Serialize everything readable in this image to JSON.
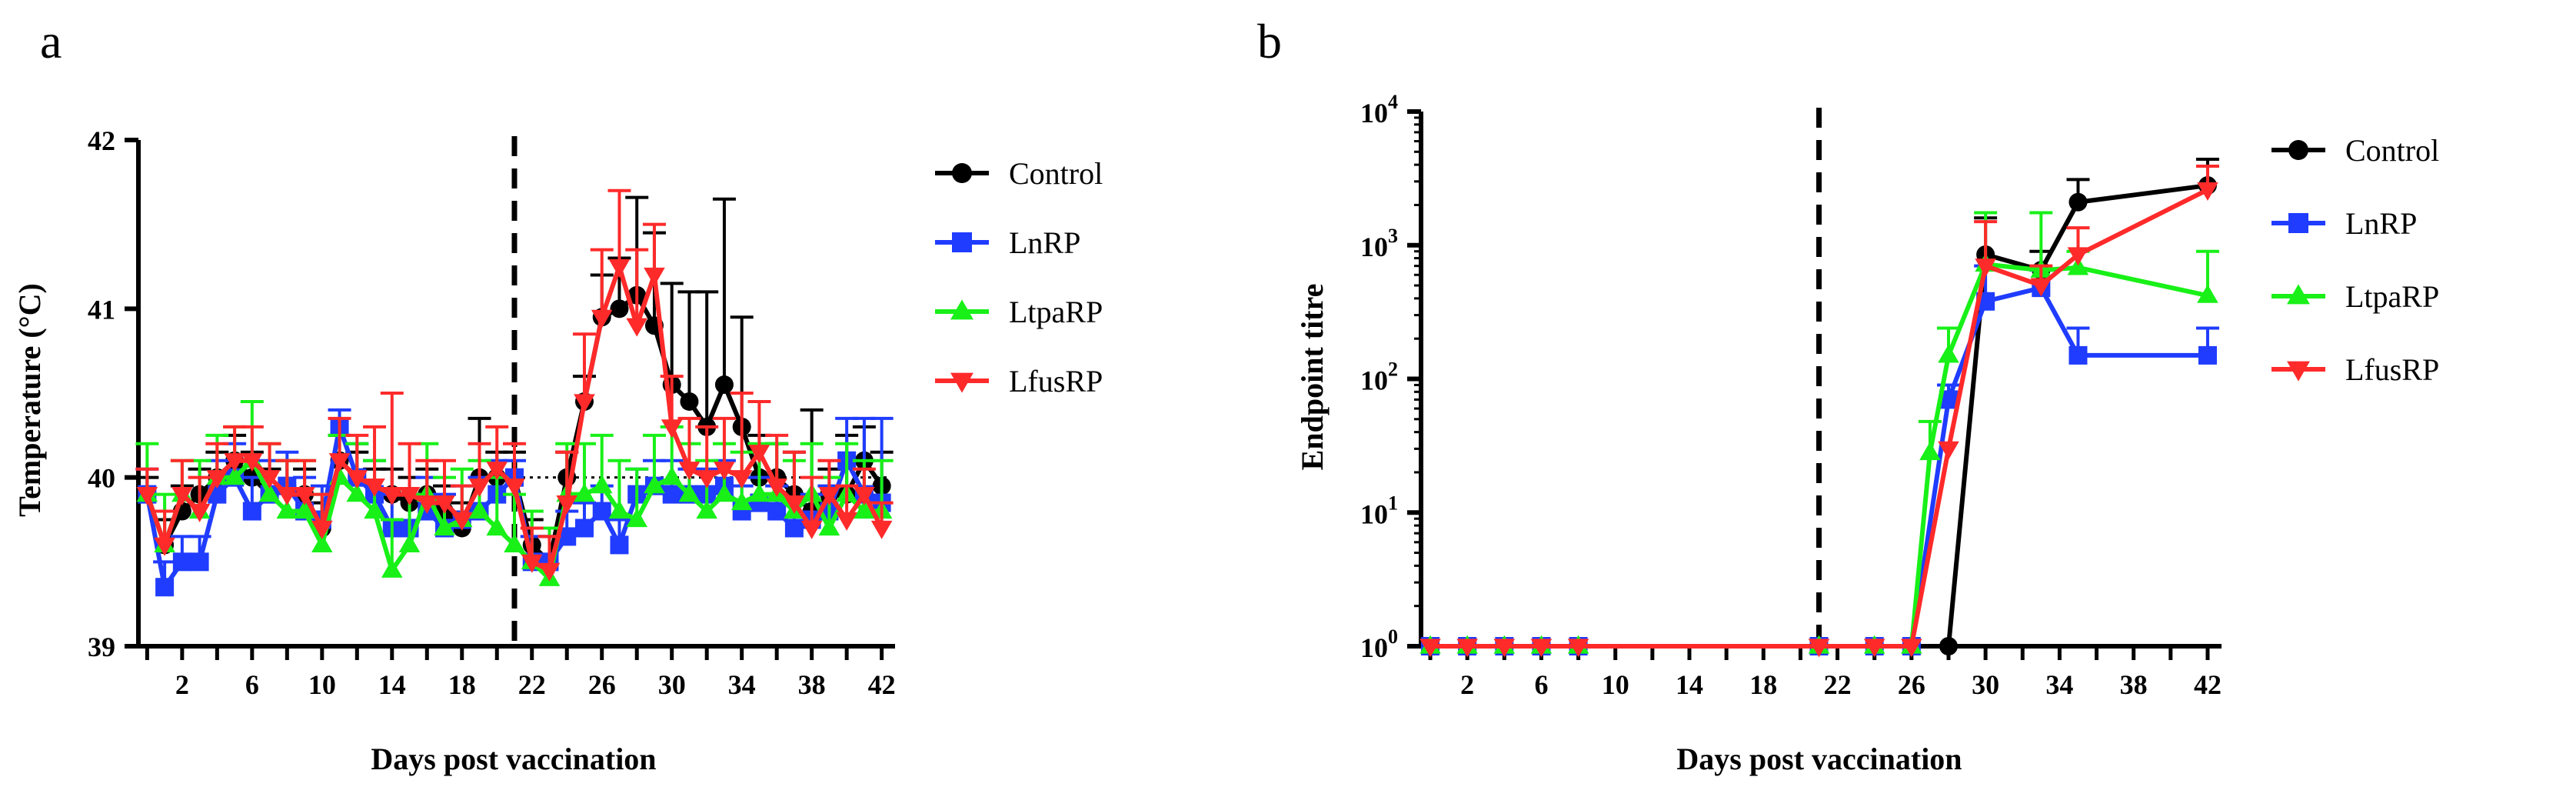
{
  "figure": {
    "panel_a_letter": "a",
    "panel_b_letter": "b"
  },
  "chart_data": [
    {
      "panel": "a",
      "type": "line",
      "title": "",
      "xlabel": "Days post vaccination",
      "ylabel": "Temperature (°C)",
      "xlim": [
        -0.5,
        42.5
      ],
      "ylim": [
        39,
        42
      ],
      "xticks": [
        2,
        6,
        10,
        14,
        18,
        22,
        26,
        30,
        34,
        38,
        42
      ],
      "yticks": [
        39,
        40,
        41,
        42
      ],
      "baseline": 40,
      "vline_x": 21,
      "legend": [
        "Control",
        "LnRP",
        "LtpaRP",
        "LfusRP"
      ],
      "legend_position": "right",
      "series": [
        {
          "name": "Control",
          "color": "#000000",
          "marker": "circle",
          "x": [
            0,
            1,
            2,
            3,
            4,
            5,
            6,
            7,
            8,
            9,
            10,
            11,
            12,
            13,
            14,
            15,
            16,
            17,
            18,
            19,
            20,
            21,
            22,
            23,
            24,
            25,
            26,
            27,
            28,
            29,
            30,
            31,
            32,
            33,
            34,
            35,
            36,
            37,
            38,
            39,
            40,
            41,
            42
          ],
          "y": [
            39.9,
            39.6,
            39.8,
            39.9,
            40.0,
            40.1,
            40.0,
            39.9,
            39.95,
            39.9,
            39.7,
            40.1,
            40.0,
            39.9,
            39.9,
            39.85,
            39.9,
            39.8,
            39.7,
            40.0,
            40.0,
            40.0,
            39.6,
            39.5,
            40.0,
            40.45,
            40.95,
            41.0,
            41.08,
            40.9,
            40.55,
            40.45,
            40.3,
            40.55,
            40.3,
            40.0,
            40.0,
            39.9,
            39.8,
            39.9,
            39.9,
            40.1,
            39.95
          ],
          "err": [
            0.1,
            0.15,
            0.15,
            0.15,
            0.15,
            0.15,
            0.15,
            0.15,
            0.15,
            0.15,
            0.15,
            0.15,
            0.15,
            0.15,
            0.15,
            0.15,
            0.15,
            0.15,
            0.15,
            0.35,
            0.15,
            0.15,
            0.15,
            0.15,
            0.15,
            0.15,
            0.25,
            0.3,
            0.58,
            0.55,
            0.6,
            0.65,
            0.8,
            1.1,
            0.65,
            0.25,
            0.2,
            0.25,
            0.6,
            0.15,
            0.35,
            0.2,
            0.2
          ]
        },
        {
          "name": "LnRP",
          "color": "#1f3cff",
          "marker": "square",
          "x": [
            0,
            1,
            2,
            3,
            4,
            5,
            6,
            7,
            8,
            9,
            10,
            11,
            12,
            13,
            14,
            15,
            16,
            17,
            18,
            19,
            20,
            21,
            22,
            23,
            24,
            25,
            26,
            27,
            28,
            29,
            30,
            31,
            32,
            33,
            34,
            35,
            36,
            37,
            38,
            39,
            40,
            41,
            42
          ],
          "y": [
            39.9,
            39.35,
            39.5,
            39.5,
            39.9,
            40.0,
            39.8,
            39.9,
            39.95,
            39.8,
            39.75,
            40.3,
            40.0,
            39.9,
            39.7,
            39.7,
            39.8,
            39.7,
            39.75,
            39.8,
            39.9,
            40.0,
            39.5,
            39.5,
            39.65,
            39.7,
            39.8,
            39.6,
            39.9,
            39.95,
            39.9,
            39.9,
            39.9,
            39.95,
            39.8,
            39.85,
            39.8,
            39.7,
            39.75,
            39.8,
            40.1,
            39.9,
            39.85
          ],
          "err": [
            0.15,
            0.15,
            0.15,
            0.15,
            0.2,
            0.2,
            0.2,
            0.2,
            0.2,
            0.2,
            0.2,
            0.1,
            0.2,
            0.2,
            0.2,
            0.2,
            0.2,
            0.2,
            0.2,
            0.2,
            0.2,
            0.1,
            0.15,
            0.15,
            0.15,
            0.15,
            0.15,
            0.15,
            0.15,
            0.15,
            0.2,
            0.15,
            0.15,
            0.15,
            0.15,
            0.15,
            0.15,
            0.15,
            0.15,
            0.15,
            0.25,
            0.45,
            0.5
          ]
        },
        {
          "name": "LtpaRP",
          "color": "#18f018",
          "marker": "triangle-up",
          "x": [
            0,
            1,
            2,
            3,
            4,
            5,
            6,
            7,
            8,
            9,
            10,
            11,
            12,
            13,
            14,
            15,
            16,
            17,
            18,
            19,
            20,
            21,
            22,
            23,
            24,
            25,
            26,
            27,
            28,
            29,
            30,
            31,
            32,
            33,
            34,
            35,
            36,
            37,
            38,
            39,
            40,
            41,
            42
          ],
          "y": [
            39.9,
            39.6,
            39.9,
            39.8,
            40.0,
            40.0,
            40.1,
            39.9,
            39.8,
            39.8,
            39.6,
            40.0,
            39.9,
            39.8,
            39.45,
            39.6,
            39.9,
            39.7,
            39.75,
            39.8,
            39.7,
            39.6,
            39.5,
            39.4,
            39.9,
            39.9,
            39.95,
            39.8,
            39.75,
            39.95,
            40.0,
            39.9,
            39.8,
            39.9,
            39.85,
            39.9,
            39.9,
            39.8,
            39.9,
            39.7,
            39.9,
            39.8,
            39.8
          ],
          "err": [
            0.3,
            0.3,
            0.2,
            0.3,
            0.25,
            0.3,
            0.35,
            0.3,
            0.3,
            0.3,
            0.3,
            0.25,
            0.3,
            0.3,
            0.3,
            0.3,
            0.3,
            0.3,
            0.3,
            0.3,
            0.3,
            0.3,
            0.3,
            0.3,
            0.3,
            0.3,
            0.3,
            0.3,
            0.3,
            0.3,
            0.3,
            0.3,
            0.3,
            0.3,
            0.3,
            0.3,
            0.3,
            0.3,
            0.3,
            0.3,
            0.3,
            0.3,
            0.3
          ]
        },
        {
          "name": "LfusRP",
          "color": "#ff2a2a",
          "marker": "triangle-down",
          "x": [
            0,
            1,
            2,
            3,
            4,
            5,
            6,
            7,
            8,
            9,
            10,
            11,
            12,
            13,
            14,
            15,
            16,
            17,
            18,
            19,
            20,
            21,
            22,
            23,
            24,
            25,
            26,
            27,
            28,
            29,
            30,
            31,
            32,
            33,
            34,
            35,
            36,
            37,
            38,
            39,
            40,
            41,
            42
          ],
          "y": [
            39.9,
            39.6,
            39.9,
            39.8,
            40.0,
            40.1,
            40.1,
            40.0,
            39.9,
            39.9,
            39.7,
            40.1,
            40.0,
            39.95,
            39.9,
            39.9,
            39.85,
            39.85,
            39.75,
            39.95,
            40.05,
            39.95,
            39.5,
            39.45,
            39.85,
            40.45,
            40.95,
            41.25,
            40.9,
            41.2,
            40.3,
            40.05,
            40.0,
            40.05,
            40.0,
            40.15,
            39.95,
            39.85,
            39.7,
            39.9,
            39.75,
            39.9,
            39.7
          ],
          "err": [
            0.15,
            0.2,
            0.2,
            0.2,
            0.2,
            0.2,
            0.2,
            0.2,
            0.2,
            0.2,
            0.2,
            0.25,
            0.25,
            0.35,
            0.6,
            0.3,
            0.25,
            0.25,
            0.2,
            0.25,
            0.25,
            0.25,
            0.2,
            0.2,
            0.3,
            0.4,
            0.4,
            0.45,
            0.45,
            0.3,
            0.3,
            0.3,
            0.3,
            0.3,
            0.5,
            0.3,
            0.3,
            0.3,
            0.3,
            0.2,
            0.2,
            0.15,
            0.15
          ]
        }
      ]
    },
    {
      "panel": "b",
      "type": "line",
      "title": "",
      "xlabel": "Days post vaccination",
      "ylabel": "Endpoint titre",
      "yscale": "log",
      "xlim": [
        -0.5,
        42.5
      ],
      "ylim": [
        1,
        10000
      ],
      "xticks": [
        2,
        6,
        10,
        14,
        18,
        22,
        26,
        30,
        34,
        38,
        42
      ],
      "ytick_exponents": [
        0,
        1,
        2,
        3,
        4
      ],
      "ytick_base": "10",
      "vline_x": 21,
      "legend": [
        "Control",
        "LnRP",
        "LtpaRP",
        "LfusRP"
      ],
      "legend_position": "right",
      "series": [
        {
          "name": "Control",
          "color": "#000000",
          "marker": "circle",
          "x": [
            0,
            2,
            4,
            6,
            8,
            21,
            24,
            26,
            28,
            30,
            33,
            35,
            42
          ],
          "y": [
            1,
            1,
            1,
            1,
            1,
            1,
            1,
            1,
            1,
            850,
            650,
            2100,
            2800
          ],
          "err_hi": [
            1,
            1,
            1,
            1,
            1,
            1,
            1,
            1,
            1,
            1600,
            900,
            3100,
            4400
          ]
        },
        {
          "name": "LnRP",
          "color": "#1f3cff",
          "marker": "square",
          "x": [
            0,
            2,
            4,
            6,
            8,
            21,
            24,
            26,
            28,
            30,
            33,
            35,
            42
          ],
          "y": [
            1,
            1,
            1,
            1,
            1,
            1,
            1,
            1,
            70,
            380,
            480,
            150,
            150
          ],
          "err_hi": [
            1,
            1,
            1,
            1,
            1,
            1,
            1,
            1,
            90,
            700,
            650,
            240,
            240
          ]
        },
        {
          "name": "LtpaRP",
          "color": "#18f018",
          "marker": "triangle-up",
          "x": [
            0,
            2,
            4,
            6,
            8,
            21,
            24,
            26,
            27,
            28,
            30,
            33,
            35,
            42
          ],
          "y": [
            1,
            1,
            1,
            1,
            1,
            1,
            1,
            1,
            28,
            150,
            720,
            650,
            680,
            420
          ],
          "err_hi": [
            1,
            1,
            1,
            1,
            1,
            1,
            1,
            1,
            48,
            240,
            1750,
            1750,
            900,
            900
          ]
        },
        {
          "name": "LfusRP",
          "color": "#ff2a2a",
          "marker": "triangle-down",
          "x": [
            0,
            2,
            4,
            6,
            8,
            21,
            24,
            26,
            28,
            30,
            33,
            35,
            42
          ],
          "y": [
            1,
            1,
            1,
            1,
            1,
            1,
            1,
            1,
            30,
            700,
            500,
            850,
            2600
          ],
          "err_hi": [
            1,
            1,
            1,
            1,
            1,
            1,
            1,
            1,
            30,
            1500,
            700,
            1350,
            3900
          ]
        }
      ]
    }
  ]
}
